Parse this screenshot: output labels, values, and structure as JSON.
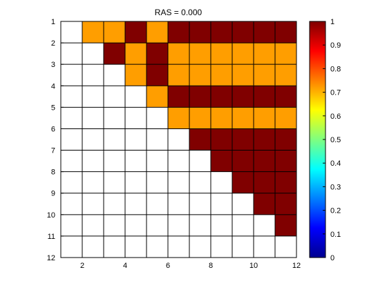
{
  "chart_data": {
    "type": "heatmap",
    "title": "RAS = 0.000",
    "xlabel": "",
    "ylabel": "",
    "x_ticks": [
      2,
      4,
      6,
      8,
      10,
      12
    ],
    "y_ticks": [
      1,
      2,
      3,
      4,
      5,
      6,
      7,
      8,
      9,
      10,
      11,
      12
    ],
    "xlim": [
      1,
      12
    ],
    "ylim": [
      1,
      12
    ],
    "colorbar": {
      "colormap": "jet",
      "range": [
        0,
        1
      ],
      "ticks": [
        "0",
        "0.1",
        "0.2",
        "0.3",
        "0.4",
        "0.5",
        "0.6",
        "0.7",
        "0.8",
        "0.9",
        "1"
      ]
    },
    "grid": true,
    "empty_color": "#ffffff",
    "matrix": [
      [
        null,
        0.72,
        0.72,
        1,
        0.72,
        1,
        1,
        1,
        1,
        1,
        1
      ],
      [
        null,
        null,
        1,
        0.72,
        1,
        0.72,
        0.72,
        0.72,
        0.72,
        0.72,
        0.72
      ],
      [
        null,
        null,
        null,
        0.72,
        1,
        0.72,
        0.72,
        0.72,
        0.72,
        0.72,
        0.72
      ],
      [
        null,
        null,
        null,
        null,
        0.72,
        1,
        1,
        1,
        1,
        1,
        1
      ],
      [
        null,
        null,
        null,
        null,
        null,
        0.72,
        0.72,
        0.72,
        0.72,
        0.72,
        0.72
      ],
      [
        null,
        null,
        null,
        null,
        null,
        null,
        1,
        1,
        1,
        1,
        1
      ],
      [
        null,
        null,
        null,
        null,
        null,
        null,
        null,
        1,
        1,
        1,
        1
      ],
      [
        null,
        null,
        null,
        null,
        null,
        null,
        null,
        null,
        1,
        1,
        1
      ],
      [
        null,
        null,
        null,
        null,
        null,
        null,
        null,
        null,
        null,
        1,
        1
      ],
      [
        null,
        null,
        null,
        null,
        null,
        null,
        null,
        null,
        null,
        null,
        1
      ],
      [
        null,
        null,
        null,
        null,
        null,
        null,
        null,
        null,
        null,
        null,
        null
      ]
    ]
  }
}
